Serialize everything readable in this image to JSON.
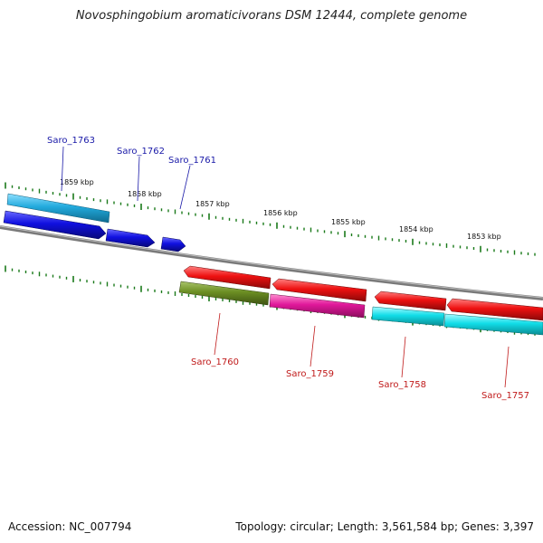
{
  "title": "Novosphingobium aromaticivorans DSM 12444, complete genome",
  "footer": {
    "accession": "Accession: NC_007794",
    "summary": "Topology: circular; Length: 3,561,584 bp; Genes: 3,397"
  },
  "scale": {
    "ticks": [
      {
        "label": "1859 kbp"
      },
      {
        "label": "1858 kbp"
      },
      {
        "label": "1857 kbp"
      },
      {
        "label": "1856 kbp"
      },
      {
        "label": "1855 kbp"
      },
      {
        "label": "1854 kbp"
      },
      {
        "label": "1853 kbp"
      }
    ]
  },
  "genes": {
    "top": [
      {
        "label": "Saro_1763"
      },
      {
        "label": "Saro_1762"
      },
      {
        "label": "Saro_1761"
      }
    ],
    "bottom": [
      {
        "label": "Saro_1760"
      },
      {
        "label": "Saro_1759"
      },
      {
        "label": "Saro_1758"
      },
      {
        "label": "Saro_1757"
      }
    ]
  },
  "colors": {
    "blue": "#1010e0",
    "sky": "#22aadd",
    "red": "#ee1111",
    "olive": "#6b8e23",
    "magenta": "#e0189a",
    "cyan": "#11dde8",
    "backbone": "#7a7a7a",
    "tick": "#1a7a1a"
  }
}
